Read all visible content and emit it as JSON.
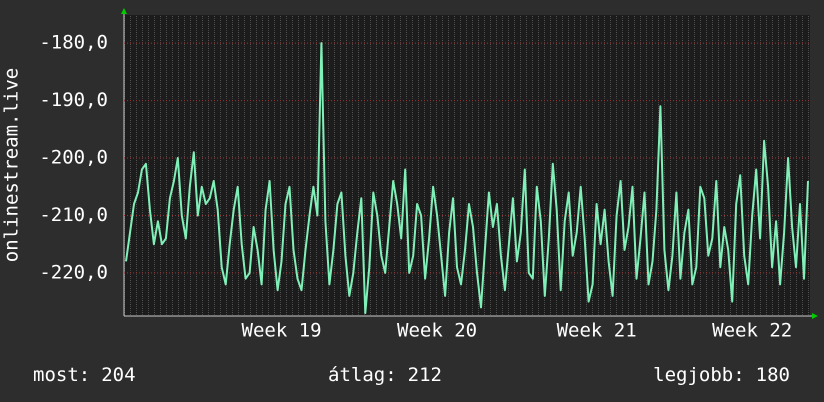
{
  "chart_data": {
    "type": "line",
    "y_label": "onlinestream.live",
    "categories": [
      null,
      null,
      null,
      null,
      null,
      null,
      null,
      null,
      null,
      null,
      null,
      null,
      null,
      null,
      null,
      null,
      null,
      null,
      null,
      null,
      null,
      null,
      null,
      null,
      null,
      null,
      null,
      null,
      null,
      null,
      null,
      null,
      null,
      null,
      null,
      null,
      null,
      null,
      null,
      "Week 19",
      null,
      null,
      null,
      null,
      null,
      null,
      null,
      null,
      null,
      null,
      null,
      null,
      null,
      null,
      null,
      null,
      null,
      null,
      null,
      null,
      null,
      null,
      null,
      null,
      null,
      null,
      null,
      null,
      null,
      null,
      null,
      null,
      null,
      null,
      null,
      null,
      null,
      null,
      "Week 20",
      null,
      null,
      null,
      null,
      null,
      null,
      null,
      null,
      null,
      null,
      null,
      null,
      null,
      null,
      null,
      null,
      null,
      null,
      null,
      null,
      null,
      null,
      null,
      null,
      null,
      null,
      null,
      null,
      null,
      null,
      null,
      null,
      null,
      null,
      null,
      null,
      null,
      null,
      null,
      "Week 21",
      null,
      null,
      null,
      null,
      null,
      null,
      null,
      null,
      null,
      null,
      null,
      null,
      null,
      null,
      null,
      null,
      null,
      null,
      null,
      null,
      null,
      null,
      null,
      null,
      null,
      null,
      null,
      null,
      null,
      null,
      null,
      null,
      null,
      null,
      null,
      null,
      null,
      null,
      "Week 22",
      null,
      null,
      null,
      null,
      null,
      null,
      null,
      null,
      null,
      null,
      null,
      null,
      null,
      null
    ],
    "series": [
      {
        "name": "onlinestream.live",
        "color": "#7ff0b8",
        "values": [
          -218,
          -213,
          -208,
          -206,
          -202,
          -201,
          -209,
          -215,
          -211,
          -215,
          -214,
          -207,
          -204,
          -200,
          -210,
          -214,
          -205,
          -199,
          -210,
          -205,
          -208,
          -207,
          -204,
          -209,
          -219,
          -222,
          -215,
          -209,
          -205,
          -215,
          -221,
          -220,
          -212,
          -216,
          -222,
          -209,
          -204,
          -216,
          -223,
          -218,
          -208,
          -205,
          -216,
          -221,
          -223,
          -216,
          -210,
          -205,
          -210,
          -180,
          -211,
          -222,
          -216,
          -208,
          -206,
          -217,
          -224,
          -220,
          -213,
          -207,
          -227,
          -219,
          -206,
          -210,
          -217,
          -220,
          -212,
          -204,
          -208,
          -214,
          -202,
          -220,
          -217,
          -208,
          -210,
          -221,
          -214,
          -205,
          -210,
          -217,
          -224,
          -213,
          -207,
          -219,
          -222,
          -216,
          -208,
          -212,
          -220,
          -226,
          -216,
          -206,
          -212,
          -208,
          -217,
          -223,
          -215,
          -207,
          -218,
          -213,
          -202,
          -220,
          -221,
          -205,
          -211,
          -224,
          -214,
          -201,
          -209,
          -223,
          -211,
          -206,
          -217,
          -213,
          -205,
          -214,
          -225,
          -222,
          -208,
          -215,
          -209,
          -218,
          -224,
          -210,
          -204,
          -216,
          -212,
          -205,
          -221,
          -214,
          -206,
          -222,
          -218,
          -209,
          -191,
          -216,
          -223,
          -217,
          -206,
          -221,
          -213,
          -209,
          -222,
          -219,
          -205,
          -207,
          -217,
          -214,
          -204,
          -219,
          -212,
          -216,
          -225,
          -208,
          -203,
          -217,
          -222,
          -210,
          -202,
          -214,
          -197,
          -205,
          -219,
          -211,
          -222,
          -213,
          -200,
          -212,
          -219,
          -208,
          -221,
          -204
        ]
      }
    ],
    "ylim": [
      -227.5,
      -175.1
    ],
    "yticks": [
      {
        "value": -220,
        "label": "-220,0"
      },
      {
        "value": -210,
        "label": "-210,0"
      },
      {
        "value": -200,
        "label": "-200,0"
      },
      {
        "value": -190,
        "label": "-190,0"
      },
      {
        "value": -180,
        "label": "-180,0"
      }
    ],
    "grid": true,
    "stats": [
      {
        "label": "most:",
        "value": 204
      },
      {
        "label": "átlag:",
        "value": 212
      },
      {
        "label": "legjobb:",
        "value": 180
      }
    ]
  }
}
